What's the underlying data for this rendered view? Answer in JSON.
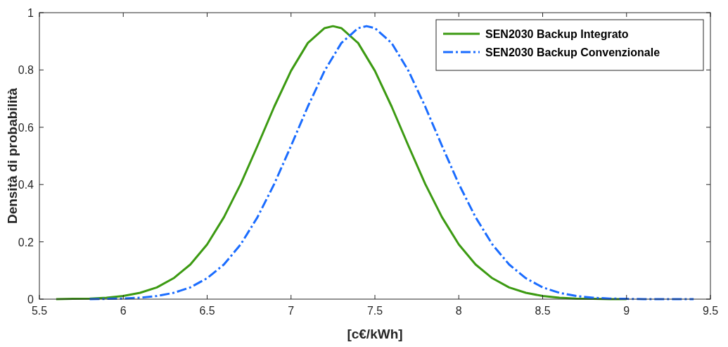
{
  "chart_data": {
    "type": "line",
    "xlabel": "[c€/kWh]",
    "ylabel": "Densità di probabilità",
    "xlim": [
      5.5,
      9.5
    ],
    "ylim": [
      0,
      1
    ],
    "xticks": [
      5.5,
      6,
      6.5,
      7,
      7.5,
      8,
      8.5,
      9,
      9.5
    ],
    "yticks": [
      0,
      0.2,
      0.4,
      0.6,
      0.8,
      1
    ],
    "grid": false,
    "legend": "top right",
    "marker": "none",
    "series": [
      {
        "name": "SEN2030 Backup Integrato",
        "color": "#3c9a12",
        "line_style": "solid",
        "x": [
          5.6,
          5.7,
          5.8,
          5.9,
          6.0,
          6.1,
          6.2,
          6.3,
          6.4,
          6.5,
          6.6,
          6.7,
          6.8,
          6.9,
          7.0,
          7.1,
          7.2,
          7.25,
          7.3,
          7.4,
          7.5,
          7.6,
          7.7,
          7.8,
          7.9,
          8.0,
          8.1,
          8.2,
          8.3,
          8.4,
          8.5,
          8.6,
          8.7,
          8.8,
          8.9,
          9.0
        ],
        "values": [
          0.0,
          0.001,
          0.002,
          0.005,
          0.011,
          0.022,
          0.041,
          0.073,
          0.121,
          0.191,
          0.286,
          0.402,
          0.535,
          0.672,
          0.797,
          0.894,
          0.946,
          0.953,
          0.946,
          0.894,
          0.797,
          0.672,
          0.535,
          0.402,
          0.286,
          0.191,
          0.121,
          0.073,
          0.041,
          0.022,
          0.011,
          0.005,
          0.002,
          0.001,
          0.0,
          0.0
        ]
      },
      {
        "name": "SEN2030 Backup Convenzionale",
        "color": "#1a6cff",
        "line_style": "dashed",
        "x": [
          5.8,
          5.9,
          6.0,
          6.1,
          6.2,
          6.3,
          6.4,
          6.5,
          6.6,
          6.7,
          6.8,
          6.9,
          7.0,
          7.1,
          7.2,
          7.3,
          7.4,
          7.45,
          7.5,
          7.6,
          7.7,
          7.8,
          7.9,
          8.0,
          8.1,
          8.2,
          8.3,
          8.4,
          8.5,
          8.6,
          8.7,
          8.8,
          8.9,
          9.0,
          9.1,
          9.2,
          9.3,
          9.4
        ],
        "values": [
          0.0,
          0.001,
          0.002,
          0.005,
          0.011,
          0.022,
          0.041,
          0.073,
          0.121,
          0.191,
          0.286,
          0.402,
          0.535,
          0.672,
          0.797,
          0.894,
          0.946,
          0.953,
          0.946,
          0.894,
          0.797,
          0.672,
          0.535,
          0.402,
          0.286,
          0.191,
          0.121,
          0.073,
          0.041,
          0.022,
          0.011,
          0.005,
          0.002,
          0.001,
          0.0,
          0.0,
          0.0,
          0.0
        ]
      }
    ]
  }
}
